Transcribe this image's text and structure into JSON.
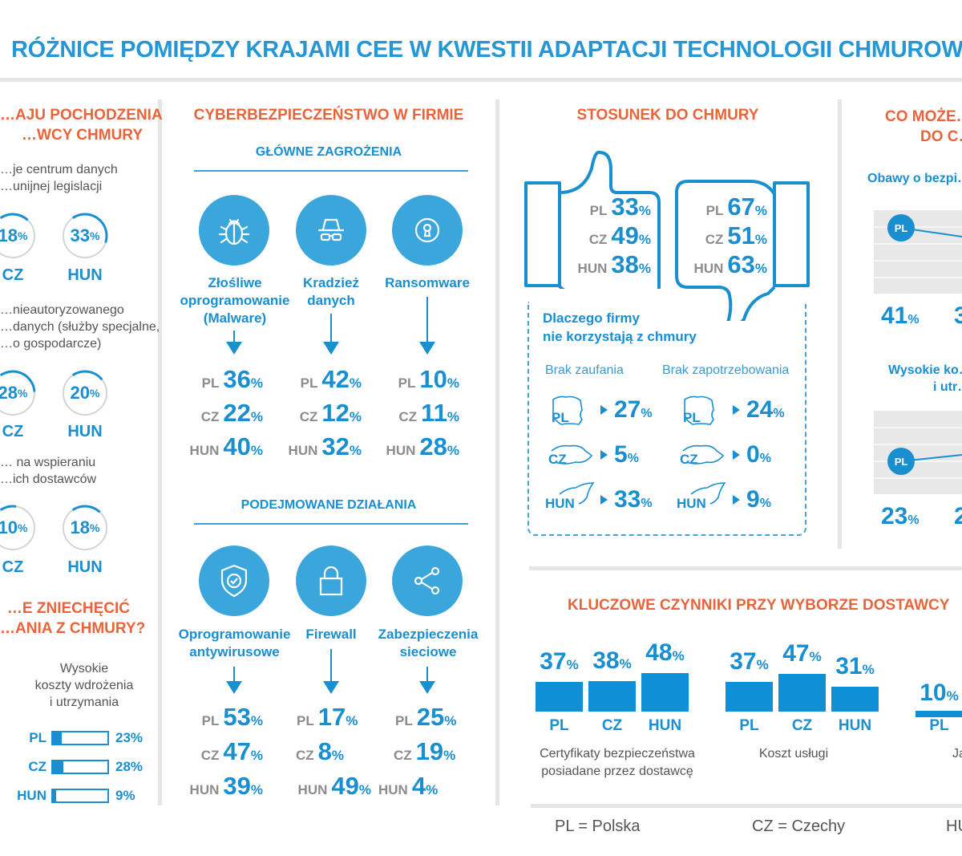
{
  "title": "RÓŻNICE POMIĘDZY KRAJAMI CEE W KWESTII ADAPTACJI TECHNOLOGII CHMUROWYCH",
  "colors": {
    "primary_blue": "#1a8fd0",
    "accent_orange": "#e8643a",
    "icon_circle": "#3aa6dc",
    "label_grey": "#8c8c8c"
  },
  "origin": {
    "title_line1": "…AJU POCHODZENIA",
    "title_line2": "…WCY CHMURY",
    "groups": [
      {
        "desc_line1": "…je centrum danych",
        "desc_line2": "…unijnej legislacji",
        "items": [
          {
            "country": "CZ",
            "value": 18,
            "unit": "%"
          },
          {
            "country": "HUN",
            "value": 33,
            "unit": "%"
          }
        ]
      },
      {
        "desc_line1": "…nieautoryzowanego",
        "desc_line2": "…danych (służby specjalne,",
        "desc_line3": "…o gospodarcze)",
        "items": [
          {
            "country": "CZ",
            "value": 28,
            "unit": "%"
          },
          {
            "country": "HUN",
            "value": 20,
            "unit": "%"
          }
        ]
      },
      {
        "desc_line1": "… na wspieraniu",
        "desc_line2": "…ich dostawców",
        "items": [
          {
            "country": "CZ",
            "value": 10,
            "unit": "%"
          },
          {
            "country": "HUN",
            "value": 18,
            "unit": "%"
          }
        ]
      }
    ]
  },
  "discourage": {
    "title_line1": "…E ZNIECHĘCIĆ",
    "title_line2": "…ANIA Z CHMURY?",
    "caption_line1": "Wysokie",
    "caption_line2": "koszty wdrożenia",
    "caption_line3": "i utrzymania",
    "rows": [
      {
        "country": "PL",
        "value": 23,
        "label": "23%"
      },
      {
        "country": "CZ",
        "value": 28,
        "label": "28%"
      },
      {
        "country": "HUN",
        "value": 9,
        "label": "9%"
      }
    ]
  },
  "cyber": {
    "title": "CYBERBEZPIECZEŃSTWO W FIRMIE",
    "threats_title": "GŁÓWNE ZAGROŻENIA",
    "threats": [
      {
        "icon": "bug-icon",
        "label_line1": "Złośliwe",
        "label_line2": "oprogramowanie",
        "label_line3": "(Malware)",
        "stats": [
          {
            "country": "PL",
            "value": "36"
          },
          {
            "country": "CZ",
            "value": "22"
          },
          {
            "country": "HUN",
            "value": "40"
          }
        ]
      },
      {
        "icon": "spy-icon",
        "label_line1": "Kradzież",
        "label_line2": "danych",
        "label_line3": "",
        "stats": [
          {
            "country": "PL",
            "value": "42"
          },
          {
            "country": "CZ",
            "value": "12"
          },
          {
            "country": "HUN",
            "value": "32"
          }
        ]
      },
      {
        "icon": "keyhole-icon",
        "label_line1": "Ransomware",
        "label_line2": "",
        "label_line3": "",
        "stats": [
          {
            "country": "PL",
            "value": "10"
          },
          {
            "country": "CZ",
            "value": "11"
          },
          {
            "country": "HUN",
            "value": "28"
          }
        ]
      }
    ],
    "actions_title": "PODEJMOWANE DZIAŁANIA",
    "actions": [
      {
        "icon": "shield-check-icon",
        "label_line1": "Oprogramowanie",
        "label_line2": "antywirusowe",
        "stats": [
          {
            "country": "PL",
            "value": "53"
          },
          {
            "country": "CZ",
            "value": "47"
          },
          {
            "country": "HUN",
            "value": "39"
          }
        ]
      },
      {
        "icon": "lock-icon",
        "label_line1": "Firewall",
        "label_line2": "",
        "stats": [
          {
            "country": "PL",
            "value": "17"
          },
          {
            "country": "CZ",
            "value": "8"
          },
          {
            "country": "HUN",
            "value": "49"
          }
        ]
      },
      {
        "icon": "share-icon",
        "label_line1": "Zabezpieczenia",
        "label_line2": "sieciowe",
        "stats": [
          {
            "country": "PL",
            "value": "25"
          },
          {
            "country": "CZ",
            "value": "19"
          },
          {
            "country": "HUN",
            "value": "4"
          }
        ]
      }
    ],
    "pct": "%"
  },
  "attitude": {
    "title": "STOSUNEK DO CHMURY",
    "thumbs_up": {
      "icon": "thumbs-up-icon",
      "stats": [
        {
          "country": "PL",
          "value": "33"
        },
        {
          "country": "CZ",
          "value": "49"
        },
        {
          "country": "HUN",
          "value": "38"
        }
      ]
    },
    "thumbs_down": {
      "icon": "thumbs-down-icon",
      "stats": [
        {
          "country": "PL",
          "value": "67"
        },
        {
          "country": "CZ",
          "value": "51"
        },
        {
          "country": "HUN",
          "value": "63"
        }
      ]
    },
    "why_title_line1": "Dlaczego firmy",
    "why_title_line2": "nie korzystają z chmury",
    "why_cols": [
      {
        "heading": "Brak zaufania",
        "rows": [
          {
            "country": "PL",
            "value": "27"
          },
          {
            "country": "CZ",
            "value": "5"
          },
          {
            "country": "HUN",
            "value": "33"
          }
        ]
      },
      {
        "heading": "Brak zapotrzebowania",
        "rows": [
          {
            "country": "PL",
            "value": "24"
          },
          {
            "country": "CZ",
            "value": "0"
          },
          {
            "country": "HUN",
            "value": "9"
          }
        ]
      }
    ]
  },
  "what_discourages": {
    "title_line1": "CO MOŻE…",
    "title_line2": "DO C…",
    "charts": [
      {
        "title": "Obawy o bezpi…",
        "points": [
          {
            "country": "PL",
            "value": 41,
            "label": "41"
          }
        ],
        "next_partial": "3"
      },
      {
        "title_line1": "Wysokie ko…",
        "title_line2": "i utr…",
        "points": [
          {
            "country": "PL",
            "value": 23,
            "label": "23"
          }
        ],
        "next_partial": "2"
      }
    ]
  },
  "key_factors": {
    "title": "KLUCZOWE CZYNNIKI PRZY WYBORZE DOSTAWCY",
    "groups": [
      {
        "caption_line1": "Certyfikaty bezpieczeństwa",
        "caption_line2": "posiadane przez dostawcę",
        "bars": [
          {
            "country": "PL",
            "value": 37
          },
          {
            "country": "CZ",
            "value": 38
          },
          {
            "country": "HUN",
            "value": 48
          }
        ]
      },
      {
        "caption_line1": "Koszt usługi",
        "caption_line2": "",
        "bars": [
          {
            "country": "PL",
            "value": 37
          },
          {
            "country": "CZ",
            "value": 47
          },
          {
            "country": "HUN",
            "value": 31
          }
        ]
      },
      {
        "caption_line1": "Ja…",
        "caption_line2": "",
        "bars": [
          {
            "country": "PL",
            "value": 10
          }
        ]
      }
    ]
  },
  "legend": [
    {
      "text": "PL = Polska"
    },
    {
      "text": "CZ = Czechy"
    },
    {
      "text": "HU…"
    }
  ],
  "chart_data": [
    {
      "type": "bar",
      "title": "KLUCZOWE CZYNNIKI PRZY WYBORZE DOSTAWCY",
      "categories": [
        "PL",
        "CZ",
        "HUN"
      ],
      "series": [
        {
          "name": "Certyfikaty bezpieczeństwa posiadane przez dostawcę",
          "values": [
            37,
            38,
            48
          ]
        },
        {
          "name": "Koszt usługi",
          "values": [
            37,
            47,
            31
          ]
        },
        {
          "name": "Ja… (partially visible)",
          "values": [
            10,
            null,
            null
          ]
        }
      ],
      "xlabel": "",
      "ylabel": "%",
      "ylim": [
        0,
        50
      ]
    },
    {
      "type": "bar",
      "title": "Wysokie koszty wdrożenia i utrzymania",
      "categories": [
        "PL",
        "CZ",
        "HUN"
      ],
      "values": [
        23,
        28,
        9
      ],
      "ylim": [
        0,
        100
      ]
    }
  ]
}
